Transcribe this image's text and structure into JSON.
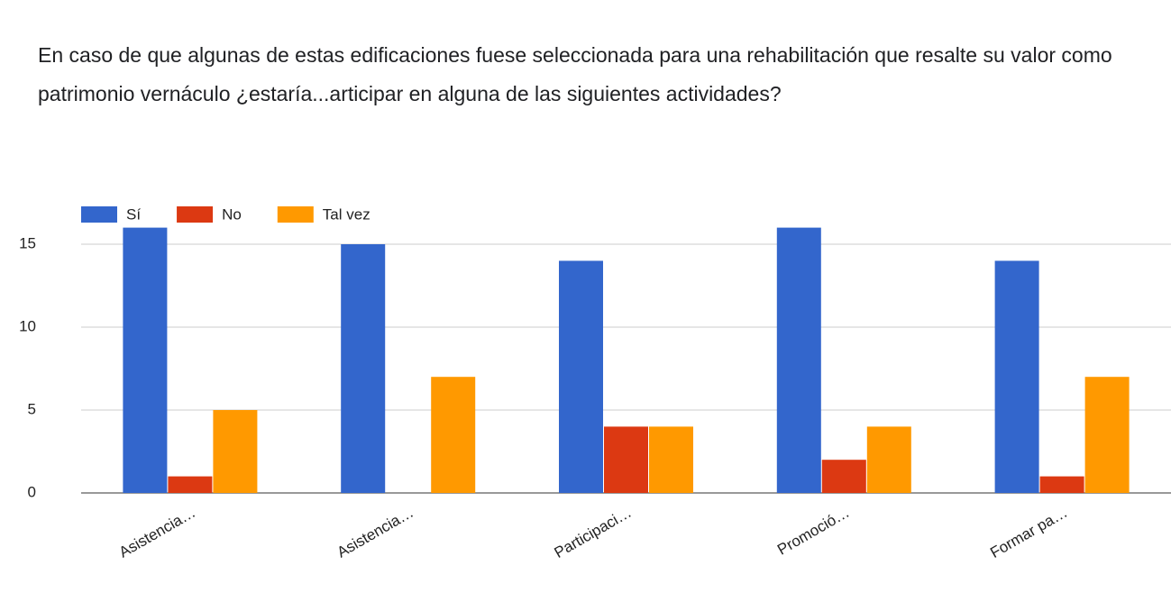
{
  "chart_data": {
    "type": "bar",
    "title": "En caso de que algunas de estas edificaciones fuese seleccionada para una rehabilitación que resalte su valor como patrimonio vernáculo ¿estaría...articipar en alguna de las siguientes actividades?",
    "categories": [
      "Asistencia…",
      "Asistencia…",
      "Participaci…",
      "Promoció…",
      "Formar pa…"
    ],
    "series": [
      {
        "name": "Sí",
        "color": "#3366cc",
        "values": [
          16,
          15,
          14,
          16,
          14
        ]
      },
      {
        "name": "No",
        "color": "#dc3912",
        "values": [
          1,
          0,
          4,
          2,
          1
        ]
      },
      {
        "name": "Tal vez",
        "color": "#ff9900",
        "values": [
          5,
          7,
          4,
          4,
          7
        ]
      }
    ],
    "ylim": [
      0,
      17.5
    ],
    "yticks": [
      0,
      5,
      10,
      15
    ],
    "grid": true,
    "legend": "top-left"
  }
}
